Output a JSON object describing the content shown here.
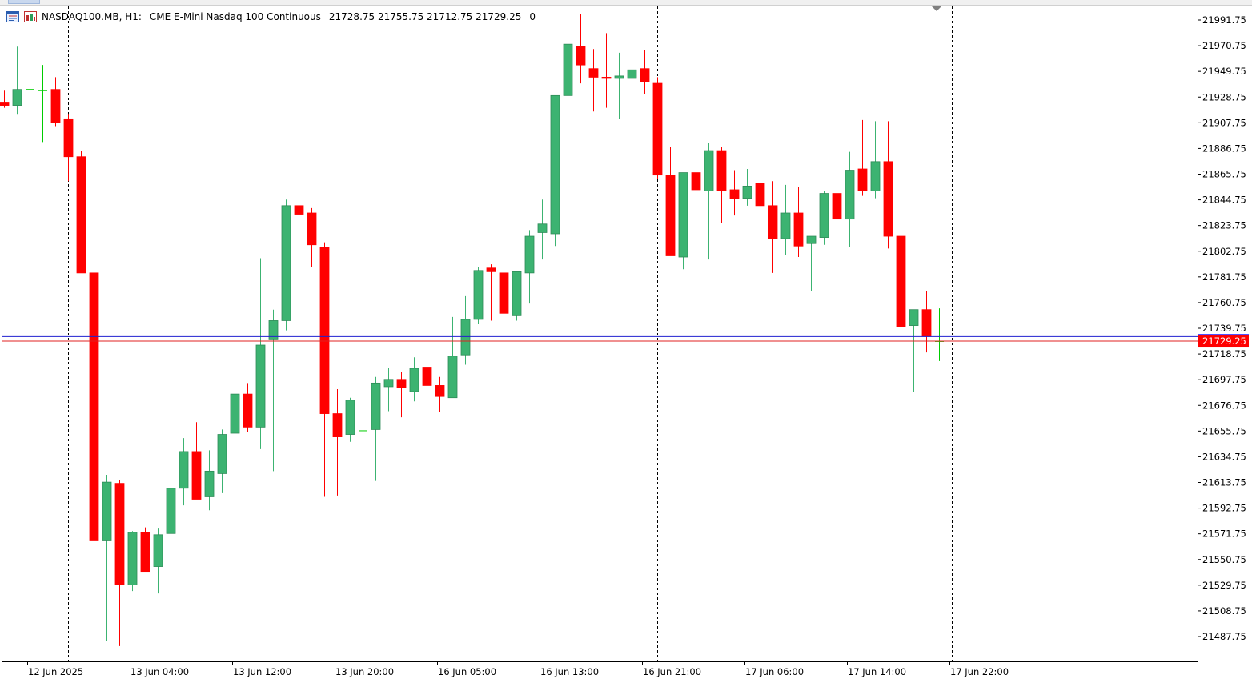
{
  "header": {
    "symbol": "NASDAQ100.MB, H1:",
    "description": "CME E-Mini Nasdaq 100 Continuous",
    "ohlc": "21728.75 21755.75 21712.75 21729.25",
    "volume": "0",
    "icons": [
      "chart-window-icon",
      "chart-bars-icon"
    ]
  },
  "chart_data": {
    "type": "candlestick",
    "symbol": "NASDAQ100.MB",
    "timeframe": "H1",
    "ylim": [
      21475,
      22000
    ],
    "y_ticks": [
      21487.75,
      21508.75,
      21529.75,
      21550.75,
      21571.75,
      21592.75,
      21613.75,
      21634.75,
      21655.75,
      21676.75,
      21697.75,
      21718.75,
      21739.75,
      21760.75,
      21781.75,
      21802.75,
      21823.75,
      21844.75,
      21865.75,
      21886.75,
      21907.75,
      21928.75,
      21949.75,
      21970.75,
      21991.75
    ],
    "x_ticks": [
      {
        "index": 2,
        "label": "12 Jun 2025"
      },
      {
        "index": 10,
        "label": "13 Jun 04:00"
      },
      {
        "index": 18,
        "label": "13 Jun 12:00"
      },
      {
        "index": 26,
        "label": "13 Jun 20:00"
      },
      {
        "index": 34,
        "label": "16 Jun 05:00"
      },
      {
        "index": 42,
        "label": "16 Jun 13:00"
      },
      {
        "index": 50,
        "label": "16 Jun 21:00"
      },
      {
        "index": 58,
        "label": "17 Jun 06:00"
      },
      {
        "index": 66,
        "label": "17 Jun 14:00"
      },
      {
        "index": 74,
        "label": "17 Jun 22:00"
      }
    ],
    "separators": [
      5,
      28,
      51,
      74
    ],
    "bid_price": 21729.25,
    "bid_label": "21729.25",
    "ask_price": 21733.0,
    "colors": {
      "up": "#3cb371",
      "down": "#ff0000",
      "doji": "#00cc00",
      "bid": "#e02020",
      "ask": "#2020d0",
      "grid": "#000000",
      "bid_label_bg": "#ff0000",
      "ask_label_bg": "#0000ff"
    },
    "candles": [
      [
        21924,
        21934,
        21920,
        21922
      ],
      [
        21922,
        21970,
        21915,
        21935
      ],
      [
        21935,
        21965,
        21898,
        21935
      ],
      [
        21934,
        21955,
        21892,
        21934
      ],
      [
        21935,
        21945,
        21905,
        21908
      ],
      [
        21911,
        21915,
        21860,
        21880
      ],
      [
        21880,
        21885,
        21785,
        21785
      ],
      [
        21785,
        21787,
        21525,
        21566
      ],
      [
        21566,
        21620,
        21484,
        21614
      ],
      [
        21613,
        21616,
        21480,
        21530
      ],
      [
        21530,
        21574,
        21525,
        21573
      ],
      [
        21573,
        21577,
        21543,
        21541
      ],
      [
        21545,
        21576,
        21523,
        21571
      ],
      [
        21572,
        21612,
        21570,
        21609
      ],
      [
        21609,
        21650,
        21595,
        21639
      ],
      [
        21639,
        21663,
        21602,
        21600
      ],
      [
        21602,
        21640,
        21591,
        21623
      ],
      [
        21621,
        21657,
        21605,
        21653
      ],
      [
        21654,
        21705,
        21650,
        21686
      ],
      [
        21686,
        21695,
        21655,
        21659
      ],
      [
        21659,
        21797,
        21641,
        21726
      ],
      [
        21731,
        21755,
        21623,
        21746
      ],
      [
        21746,
        21845,
        21738,
        21840
      ],
      [
        21840,
        21856,
        21815,
        21833
      ],
      [
        21834,
        21838,
        21790,
        21808
      ],
      [
        21806,
        21810,
        21602,
        21670
      ],
      [
        21670,
        21690,
        21603,
        21651
      ],
      [
        21653,
        21683,
        21647,
        21681
      ],
      [
        21656,
        21659,
        21539,
        21656
      ],
      [
        21657,
        21700,
        21615,
        21695
      ],
      [
        21692,
        21707,
        21672,
        21698
      ],
      [
        21698,
        21704,
        21667,
        21691
      ],
      [
        21688,
        21716,
        21680,
        21707
      ],
      [
        21708,
        21712,
        21677,
        21693
      ],
      [
        21693,
        21700,
        21671,
        21684
      ],
      [
        21683,
        21749,
        21683,
        21717
      ],
      [
        21718,
        21766,
        21710,
        21747
      ],
      [
        21747,
        21790,
        21743,
        21787
      ],
      [
        21789,
        21792,
        21746,
        21786
      ],
      [
        21785,
        21789,
        21750,
        21752
      ],
      [
        21750,
        21785,
        21746,
        21786
      ],
      [
        21785,
        21820,
        21760,
        21815
      ],
      [
        21818,
        21845,
        21796,
        21825
      ],
      [
        21817,
        21930,
        21807,
        21930
      ],
      [
        21930,
        21983,
        21923,
        21972
      ],
      [
        21970,
        21997,
        21940,
        21955
      ],
      [
        21952,
        21968,
        21917,
        21945
      ],
      [
        21945,
        21981,
        21920,
        21944
      ],
      [
        21944,
        21965,
        21911,
        21946
      ],
      [
        21944,
        21966,
        21924,
        21951
      ],
      [
        21952,
        21967,
        21931,
        21941
      ],
      [
        21940,
        21945,
        21862,
        21865
      ],
      [
        21865,
        21888,
        21799,
        21799
      ],
      [
        21798,
        21866,
        21788,
        21867
      ],
      [
        21867,
        21869,
        21824,
        21853
      ],
      [
        21852,
        21891,
        21796,
        21885
      ],
      [
        21885,
        21888,
        21826,
        21852
      ],
      [
        21853,
        21869,
        21832,
        21846
      ],
      [
        21846,
        21870,
        21840,
        21856
      ],
      [
        21858,
        21898,
        21837,
        21840
      ],
      [
        21840,
        21860,
        21785,
        21813
      ],
      [
        21813,
        21857,
        21800,
        21834
      ],
      [
        21834,
        21855,
        21798,
        21807
      ],
      [
        21809,
        21813,
        21770,
        21815
      ],
      [
        21814,
        21852,
        21808,
        21850
      ],
      [
        21850,
        21871,
        21817,
        21829
      ],
      [
        21829,
        21884,
        21806,
        21869
      ],
      [
        21870,
        21910,
        21848,
        21852
      ],
      [
        21852,
        21909,
        21846,
        21876
      ],
      [
        21876,
        21909,
        21805,
        21815
      ],
      [
        21815,
        21833,
        21717,
        21741
      ],
      [
        21742,
        21752,
        21688,
        21755
      ],
      [
        21755,
        21770,
        21720,
        21733
      ],
      [
        21729,
        21756,
        21713,
        21729
      ]
    ]
  }
}
